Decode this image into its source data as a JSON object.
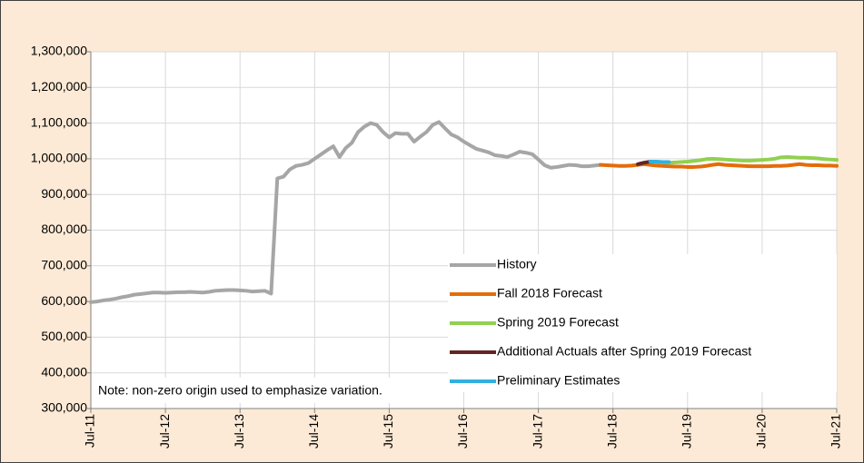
{
  "chart_data": {
    "type": "line",
    "annotation": "Note: non-zero origin used to emphasize variation.",
    "categories": [
      "Jul-11",
      null,
      null,
      null,
      null,
      null,
      null,
      null,
      null,
      null,
      null,
      null,
      "Jul-12",
      null,
      null,
      null,
      null,
      null,
      null,
      null,
      null,
      null,
      null,
      null,
      "Jul-13",
      null,
      null,
      null,
      null,
      null,
      null,
      null,
      null,
      null,
      null,
      null,
      "Jul-14",
      null,
      null,
      null,
      null,
      null,
      null,
      null,
      null,
      null,
      null,
      null,
      "Jul-15",
      null,
      null,
      null,
      null,
      null,
      null,
      null,
      null,
      null,
      null,
      null,
      "Jul-16",
      null,
      null,
      null,
      null,
      null,
      null,
      null,
      null,
      null,
      null,
      null,
      "Jul-17",
      null,
      null,
      null,
      null,
      null,
      null,
      null,
      null,
      null,
      null,
      null,
      "Jul-18",
      null,
      null,
      null,
      null,
      null,
      null,
      null,
      null,
      null,
      null,
      null,
      "Jul-19",
      null,
      null,
      null,
      null,
      null,
      null,
      null,
      null,
      null,
      null,
      null,
      "Jul-20",
      null,
      null,
      null,
      null,
      null,
      null,
      null,
      null,
      null,
      null,
      null,
      "Jul-21"
    ],
    "series": [
      {
        "name": "History",
        "color": "#a6a6a6",
        "values": [
          598000,
          600000,
          603000,
          605000,
          608000,
          612000,
          615000,
          619000,
          621000,
          623000,
          625000,
          625000,
          624000,
          625000,
          626000,
          626000,
          627000,
          626000,
          625000,
          627000,
          630000,
          631000,
          632000,
          632000,
          631000,
          630000,
          628000,
          629000,
          630000,
          622000,
          945000,
          950000,
          970000,
          980000,
          983000,
          988000,
          1000000,
          1012000,
          1024000,
          1035000,
          1005000,
          1030000,
          1045000,
          1075000,
          1090000,
          1100000,
          1095000,
          1075000,
          1060000,
          1072000,
          1070000,
          1070000,
          1048000,
          1062000,
          1075000,
          1095000,
          1103000,
          1085000,
          1068000,
          1060000,
          1048000,
          1038000,
          1028000,
          1023000,
          1018000,
          1010000,
          1008000,
          1005000,
          1012000,
          1020000,
          1017000,
          1013000,
          998000,
          982000,
          975000,
          977000,
          980000,
          983000,
          982000,
          979000,
          979000,
          981000,
          983000,
          null,
          null,
          null,
          null,
          null,
          null,
          null,
          null,
          null,
          null,
          null,
          null,
          null,
          null,
          null,
          null,
          null,
          null,
          null,
          null,
          null,
          null,
          null,
          null,
          null,
          null,
          null,
          null,
          null,
          null,
          null,
          null,
          null,
          null,
          null,
          null,
          null,
          null
        ]
      },
      {
        "name": "Fall 2018 Forecast",
        "color": "#e46c0a",
        "values": [
          null,
          null,
          null,
          null,
          null,
          null,
          null,
          null,
          null,
          null,
          null,
          null,
          null,
          null,
          null,
          null,
          null,
          null,
          null,
          null,
          null,
          null,
          null,
          null,
          null,
          null,
          null,
          null,
          null,
          null,
          null,
          null,
          null,
          null,
          null,
          null,
          null,
          null,
          null,
          null,
          null,
          null,
          null,
          null,
          null,
          null,
          null,
          null,
          null,
          null,
          null,
          null,
          null,
          null,
          null,
          null,
          null,
          null,
          null,
          null,
          null,
          null,
          null,
          null,
          null,
          null,
          null,
          null,
          null,
          null,
          null,
          null,
          null,
          null,
          null,
          null,
          null,
          null,
          null,
          null,
          null,
          null,
          983000,
          982000,
          981000,
          980000,
          980000,
          981000,
          983000,
          985000,
          983000,
          981000,
          980000,
          979000,
          978000,
          978000,
          977000,
          977000,
          978000,
          980000,
          983000,
          985000,
          983000,
          982000,
          981000,
          980000,
          979000,
          979000,
          979000,
          979000,
          980000,
          980000,
          981000,
          983000,
          985000,
          983000,
          982000,
          982000,
          981000,
          981000,
          980000
        ]
      },
      {
        "name": "Spring 2019 Forecast",
        "color": "#92d050",
        "values": [
          null,
          null,
          null,
          null,
          null,
          null,
          null,
          null,
          null,
          null,
          null,
          null,
          null,
          null,
          null,
          null,
          null,
          null,
          null,
          null,
          null,
          null,
          null,
          null,
          null,
          null,
          null,
          null,
          null,
          null,
          null,
          null,
          null,
          null,
          null,
          null,
          null,
          null,
          null,
          null,
          null,
          null,
          null,
          null,
          null,
          null,
          null,
          null,
          null,
          null,
          null,
          null,
          null,
          null,
          null,
          null,
          null,
          null,
          null,
          null,
          null,
          null,
          null,
          null,
          null,
          null,
          null,
          null,
          null,
          null,
          null,
          null,
          null,
          null,
          null,
          null,
          null,
          null,
          null,
          null,
          null,
          null,
          null,
          null,
          null,
          null,
          null,
          null,
          null,
          null,
          992000,
          991000,
          990000,
          989000,
          990000,
          991000,
          992000,
          994000,
          996000,
          999000,
          1000000,
          999000,
          998000,
          997000,
          996000,
          995000,
          995000,
          996000,
          997000,
          998000,
          1000000,
          1004000,
          1005000,
          1004000,
          1003000,
          1003000,
          1002000,
          1001000,
          999000,
          998000,
          997000
        ]
      },
      {
        "name": "Additional Actuals after Spring 2019 Forecast",
        "color": "#632523",
        "values": [
          null,
          null,
          null,
          null,
          null,
          null,
          null,
          null,
          null,
          null,
          null,
          null,
          null,
          null,
          null,
          null,
          null,
          null,
          null,
          null,
          null,
          null,
          null,
          null,
          null,
          null,
          null,
          null,
          null,
          null,
          null,
          null,
          null,
          null,
          null,
          null,
          null,
          null,
          null,
          null,
          null,
          null,
          null,
          null,
          null,
          null,
          null,
          null,
          null,
          null,
          null,
          null,
          null,
          null,
          null,
          null,
          null,
          null,
          null,
          null,
          null,
          null,
          null,
          null,
          null,
          null,
          null,
          null,
          null,
          null,
          null,
          null,
          null,
          null,
          null,
          null,
          null,
          null,
          null,
          null,
          null,
          null,
          null,
          null,
          null,
          null,
          null,
          null,
          985000,
          989000,
          992000,
          null,
          null,
          null,
          null,
          null,
          null,
          null,
          null,
          null,
          null,
          null,
          null,
          null,
          null,
          null,
          null,
          null,
          null,
          null,
          null,
          null,
          null,
          null,
          null,
          null,
          null,
          null,
          null,
          null,
          null
        ]
      },
      {
        "name": "Preliminary Estimates",
        "color": "#31b0e0",
        "values": [
          null,
          null,
          null,
          null,
          null,
          null,
          null,
          null,
          null,
          null,
          null,
          null,
          null,
          null,
          null,
          null,
          null,
          null,
          null,
          null,
          null,
          null,
          null,
          null,
          null,
          null,
          null,
          null,
          null,
          null,
          null,
          null,
          null,
          null,
          null,
          null,
          null,
          null,
          null,
          null,
          null,
          null,
          null,
          null,
          null,
          null,
          null,
          null,
          null,
          null,
          null,
          null,
          null,
          null,
          null,
          null,
          null,
          null,
          null,
          null,
          null,
          null,
          null,
          null,
          null,
          null,
          null,
          null,
          null,
          null,
          null,
          null,
          null,
          null,
          null,
          null,
          null,
          null,
          null,
          null,
          null,
          null,
          null,
          null,
          null,
          null,
          null,
          null,
          null,
          null,
          992000,
          992000,
          991000,
          991000,
          null,
          null,
          null,
          null,
          null,
          null,
          null,
          null,
          null,
          null,
          null,
          null,
          null,
          null,
          null,
          null,
          null,
          null,
          null,
          null,
          null,
          null,
          null,
          null,
          null,
          null,
          null
        ]
      }
    ],
    "ylim": [
      300000,
      1300000
    ],
    "yticks": [
      {
        "value": 300000,
        "label": "300,000"
      },
      {
        "value": 400000,
        "label": "400,000"
      },
      {
        "value": 500000,
        "label": "500,000"
      },
      {
        "value": 600000,
        "label": "600,000"
      },
      {
        "value": 700000,
        "label": "700,000"
      },
      {
        "value": 800000,
        "label": "800,000"
      },
      {
        "value": 900000,
        "label": "900,000"
      },
      {
        "value": 1000000,
        "label": "1,000,000"
      },
      {
        "value": 1100000,
        "label": "1,100,000"
      },
      {
        "value": 1200000,
        "label": "1,200,000"
      },
      {
        "value": 1300000,
        "label": "1,300,000"
      }
    ],
    "grid": true,
    "legend": "lower right"
  }
}
